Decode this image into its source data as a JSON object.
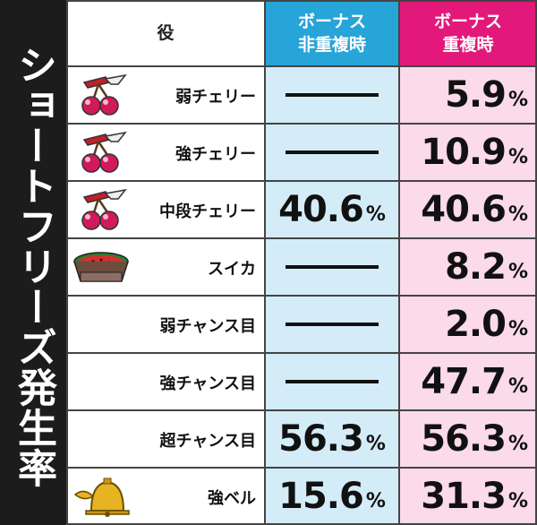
{
  "side_title": "ショートフリーズ発生率",
  "header": {
    "role": "役",
    "col_a_line1": "ボーナス",
    "col_a_line2": "非重複時",
    "col_b_line1": "ボーナス",
    "col_b_line2": "重複時"
  },
  "rows": [
    {
      "label": "弱チェリー",
      "icon": "cherry-icon",
      "a": null,
      "b": "5.9"
    },
    {
      "label": "強チェリー",
      "icon": "cherry-icon",
      "a": null,
      "b": "10.9"
    },
    {
      "label": "中段チェリー",
      "icon": "cherry-icon",
      "a": "40.6",
      "b": "40.6"
    },
    {
      "label": "スイカ",
      "icon": "watermelon-icon",
      "a": null,
      "b": "8.2"
    },
    {
      "label": "弱チャンス目",
      "icon": null,
      "a": null,
      "b": "2.0"
    },
    {
      "label": "強チャンス目",
      "icon": null,
      "a": null,
      "b": "47.7"
    },
    {
      "label": "超チャンス目",
      "icon": null,
      "a": "56.3",
      "b": "56.3"
    },
    {
      "label": "強ベル",
      "icon": "bell-icon",
      "a": "15.6",
      "b": "31.3"
    }
  ],
  "percent_sign": "%",
  "colors": {
    "header_a": "#27a4d8",
    "header_b": "#e2197a",
    "cell_a": "#d3ecf8",
    "cell_b": "#fbdaea",
    "side": "#1c1c1c"
  }
}
